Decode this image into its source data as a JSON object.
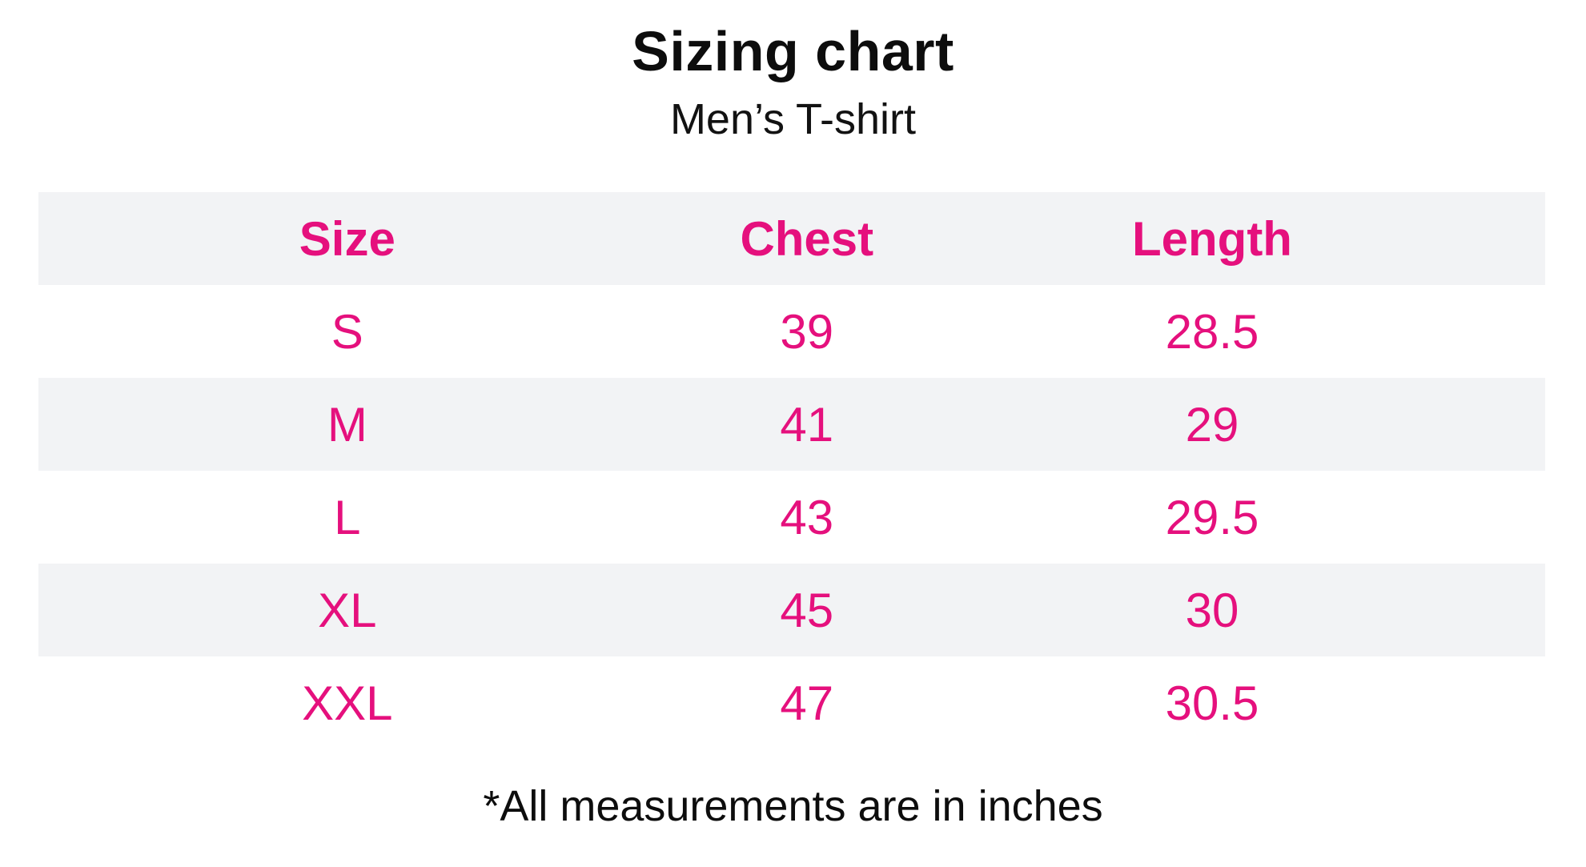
{
  "page": {
    "title": "Sizing chart",
    "subtitle": "Men’s T-shirt",
    "footnote": "*All measurements are in inches"
  },
  "colors": {
    "accent_pink": "#e5107d",
    "row_stripe": "#f2f3f5",
    "text_black": "#0d0d0d",
    "background": "#ffffff"
  },
  "chart_data": {
    "type": "table",
    "title": "Sizing chart",
    "subtitle": "Men’s T-shirt",
    "units": "inches",
    "columns": [
      "Size",
      "Chest",
      "Length"
    ],
    "rows": [
      [
        "S",
        "39",
        "28.5"
      ],
      [
        "M",
        "41",
        "29"
      ],
      [
        "L",
        "43",
        "29.5"
      ],
      [
        "XL",
        "45",
        "30"
      ],
      [
        "XXL",
        "47",
        "30.5"
      ]
    ],
    "footnote": "*All measurements are in inches",
    "layout": {
      "striped_rows": "header, M, XL",
      "header_text_color": "#e5107d",
      "value_text_color": "#e5107d"
    }
  }
}
